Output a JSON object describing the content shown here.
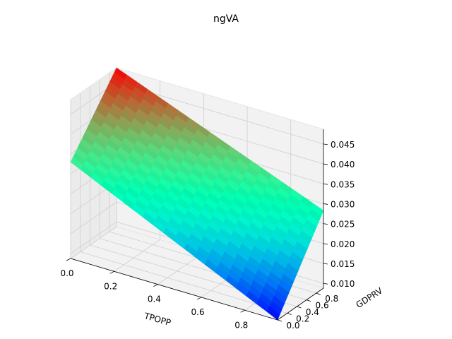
{
  "chart_data": {
    "type": "surface",
    "title": "ngVA",
    "xlabel": "TPOPP",
    "ylabel": "GDPRV",
    "zlabel": "",
    "xlim": [
      0,
      0.95
    ],
    "ylim": [
      0,
      0.95
    ],
    "zlim": [
      0.0088,
      0.0487
    ],
    "x_ticks": [
      "0.0",
      "0.2",
      "0.4",
      "0.6",
      "0.8"
    ],
    "y_ticks": [
      "0.0",
      "0.2",
      "0.4",
      "0.6",
      "0.8"
    ],
    "z_ticks": [
      "0.010",
      "0.015",
      "0.020",
      "0.025",
      "0.030",
      "0.035",
      "0.040",
      "0.045"
    ],
    "grid": true,
    "colormap": "rainbow",
    "surface_corners": [
      {
        "x": 0,
        "y": 0,
        "z": 0.033
      },
      {
        "x": 0.95,
        "y": 0,
        "z": 0.0088
      },
      {
        "x": 0,
        "y": 0.95,
        "z": 0.0487
      },
      {
        "x": 0.95,
        "y": 0.95,
        "z": 0.0283
      }
    ]
  }
}
